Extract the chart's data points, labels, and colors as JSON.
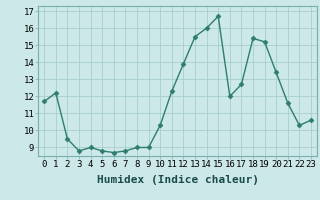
{
  "x": [
    0,
    1,
    2,
    3,
    4,
    5,
    6,
    7,
    8,
    9,
    10,
    11,
    12,
    13,
    14,
    15,
    16,
    17,
    18,
    19,
    20,
    21,
    22,
    23
  ],
  "y": [
    11.7,
    12.2,
    9.5,
    8.8,
    9.0,
    8.8,
    8.7,
    8.8,
    9.0,
    9.0,
    10.3,
    12.3,
    13.9,
    15.5,
    16.0,
    16.7,
    12.0,
    12.7,
    15.4,
    15.2,
    13.4,
    11.6,
    10.3,
    10.6
  ],
  "line_color": "#2e7d6e",
  "marker": "D",
  "markersize": 2.5,
  "linewidth": 1.0,
  "bg_color": "#cce8e8",
  "grid_color": "#a8cece",
  "xlabel": "Humidex (Indice chaleur)",
  "tick_fontsize": 6.5,
  "xlabel_fontsize": 8,
  "xlim": [
    -0.5,
    23.5
  ],
  "ylim": [
    8.5,
    17.3
  ],
  "yticks": [
    9,
    10,
    11,
    12,
    13,
    14,
    15,
    16,
    17
  ],
  "xticks": [
    0,
    1,
    2,
    3,
    4,
    5,
    6,
    7,
    8,
    9,
    10,
    11,
    12,
    13,
    14,
    15,
    16,
    17,
    18,
    19,
    20,
    21,
    22,
    23
  ]
}
